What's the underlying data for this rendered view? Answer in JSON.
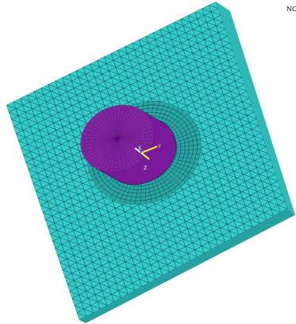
{
  "viewport": {
    "corner_label": "NODES",
    "background": "#ffffff"
  },
  "model": {
    "plate_color": "#33cccc",
    "plate_side_color": "#2fb8b8",
    "cylinder_color": "#7a1a9a",
    "cylinder_face_color": "#8a2aa8",
    "mesh_line_color": "#0a3030",
    "icons": [
      "mesh-plate",
      "cylinder-bore",
      "triad-icon"
    ]
  },
  "triad": {
    "x_label": "X",
    "y_label": "Y",
    "z_label": "Z",
    "x_color": "#ffffff",
    "y_color": "#ffff33",
    "z_color": "#3366ff"
  }
}
